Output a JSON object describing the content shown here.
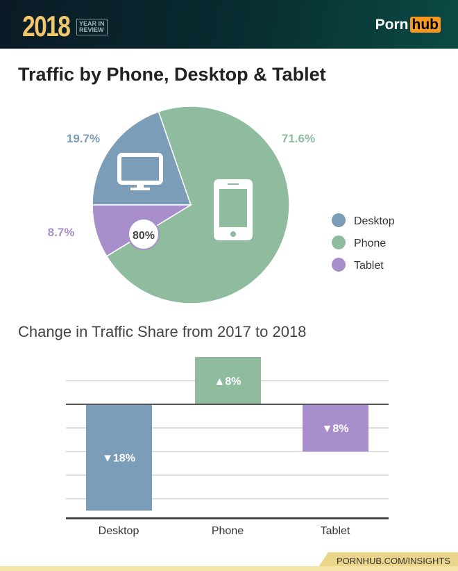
{
  "header": {
    "year": "2018",
    "badge_line1": "YEAR IN",
    "badge_line2": "REVIEW",
    "logo_left": "Porn",
    "logo_right": "hub"
  },
  "footer": {
    "link": "PORNHUB.COM/INSIGHTS"
  },
  "chart_data": [
    {
      "type": "pie",
      "title": "Traffic by Phone, Desktop & Tablet",
      "slices": [
        {
          "name": "Desktop",
          "value": 19.7,
          "label": "19.7%",
          "color": "#7b9db8",
          "icon": "desktop-monitor-icon"
        },
        {
          "name": "Phone",
          "value": 71.6,
          "label": "71.6%",
          "color": "#8fbb9f",
          "icon": "phone-icon"
        },
        {
          "name": "Tablet",
          "value": 8.7,
          "label": "8.7%",
          "color": "#a88fcb"
        }
      ],
      "annotation": "80%",
      "legend": "right"
    },
    {
      "type": "bar",
      "title": "Change in Traffic Share from 2017 to 2018",
      "categories": [
        "Desktop",
        "Phone",
        "Tablet"
      ],
      "values": [
        -18,
        8,
        -8
      ],
      "labels": [
        "▼18%",
        "▲8%",
        "▼8%"
      ],
      "colors": [
        "#7b9db8",
        "#8fbb9f",
        "#a88fcb"
      ],
      "grid": true
    }
  ]
}
